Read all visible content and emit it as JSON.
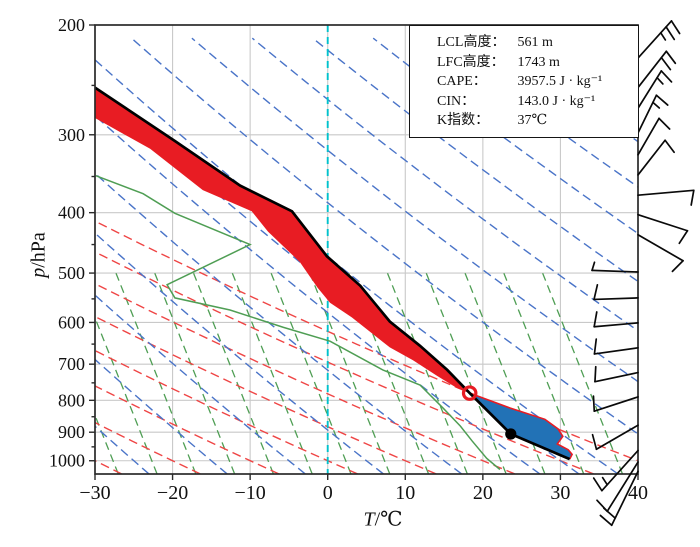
{
  "colors": {
    "cape_fill": "#e81c23",
    "cin_fill": "#2272b6",
    "temperature_line": "#000000",
    "dewpoint_line": "#4f9e54",
    "parcel_line": "#e81c23",
    "dry_adiabat": "#ef4545",
    "moist_adiabat": "#4a74c8",
    "isohume": "#4f9e54",
    "zero_isotherm": "#00c2cc",
    "grid": "#c9c9c9",
    "axis": "#2a2a2a",
    "barb": "#0a0a0a"
  },
  "stats_box": {
    "rows": [
      {
        "label": "LCL高度：",
        "value": "561 m"
      },
      {
        "label": "LFC高度：",
        "value": "1743 m"
      },
      {
        "label": "CAPE：",
        "value": "3957.5 J · kg⁻¹"
      },
      {
        "label": "CIN：",
        "value": "143.0 J · kg⁻¹"
      },
      {
        "label": "K指数：",
        "value": "37℃"
      }
    ]
  },
  "axes": {
    "x": {
      "symbol": "T",
      "unit": "/℃",
      "min": -30,
      "max": 40,
      "ticks": [
        -30,
        -20,
        -10,
        0,
        10,
        20,
        30,
        40
      ]
    },
    "y": {
      "symbol": "p",
      "unit": "/hPa",
      "min": 200,
      "max": 1050,
      "scale": "log",
      "ticks": [
        200,
        300,
        400,
        500,
        600,
        700,
        800,
        900,
        1000
      ],
      "minor_ticks": [
        250,
        350,
        450,
        550,
        650,
        750,
        850,
        950
      ]
    }
  },
  "chart_data": {
    "type": "line",
    "title": "",
    "xlabel": "T/℃",
    "ylabel": "p/hPa",
    "xlim": [
      -30,
      40
    ],
    "ylim_hPa": [
      1050,
      200
    ],
    "grid": true,
    "series": [
      {
        "name": "environment_temperature",
        "units": [
          "degC",
          "hPa"
        ],
        "points": [
          [
            -30,
            252
          ],
          [
            -19.7,
            307
          ],
          [
            -11.3,
            362
          ],
          [
            -4.6,
            398
          ],
          [
            -0.1,
            470
          ],
          [
            4.2,
            524
          ],
          [
            8.0,
            598
          ],
          [
            11.9,
            654
          ],
          [
            15.4,
            715
          ],
          [
            18.3,
            779
          ],
          [
            23.6,
            906
          ],
          [
            31.2,
            994
          ]
        ]
      },
      {
        "name": "dewpoint",
        "units": [
          "degC",
          "hPa"
        ],
        "points": [
          [
            -29.9,
            349
          ],
          [
            -23.8,
            373
          ],
          [
            -19.7,
            401
          ],
          [
            -10.0,
            450
          ],
          [
            -20.7,
            522
          ],
          [
            -19.7,
            548
          ],
          [
            -12.6,
            573
          ],
          [
            -5.7,
            611
          ],
          [
            0.3,
            643
          ],
          [
            7.1,
            715
          ],
          [
            11.9,
            756
          ],
          [
            14.9,
            824
          ],
          [
            17.1,
            880
          ],
          [
            18.6,
            929
          ],
          [
            20.5,
            991
          ],
          [
            22.2,
            1033
          ]
        ]
      },
      {
        "name": "parcel_path_low_level",
        "units": [
          "degC",
          "hPa"
        ],
        "points": [
          [
            18.3,
            779
          ],
          [
            23.5,
            823
          ],
          [
            28.0,
            858
          ],
          [
            29.7,
            889
          ],
          [
            30.3,
            914
          ],
          [
            29.6,
            940
          ],
          [
            31.0,
            960
          ],
          [
            31.5,
            977
          ],
          [
            31.2,
            994
          ]
        ]
      },
      {
        "name": "cape_inner_boundary",
        "units": [
          "degC",
          "hPa"
        ],
        "points": [
          [
            -30,
            282
          ],
          [
            -22.9,
            316
          ],
          [
            -16.1,
            368
          ],
          [
            -9.8,
            398
          ],
          [
            -7.7,
            429
          ],
          [
            -3.6,
            480
          ],
          [
            -1.3,
            528
          ],
          [
            0.3,
            558
          ],
          [
            3.1,
            589
          ],
          [
            5.1,
            616
          ],
          [
            8.0,
            658
          ],
          [
            11.0,
            690
          ],
          [
            14.1,
            731
          ],
          [
            16.7,
            765
          ],
          [
            18.3,
            779
          ]
        ]
      }
    ],
    "areas": [
      {
        "name": "CAPE",
        "value_J_per_kg": 3957.5,
        "fill": "#e81c23"
      },
      {
        "name": "CIN",
        "value_J_per_kg": 143.0,
        "fill": "#2272b6"
      }
    ],
    "markers": [
      {
        "name": "LFC",
        "t": 18.3,
        "p": 779,
        "style": "open-red-circle"
      },
      {
        "name": "LCL",
        "t": 23.6,
        "p": 906,
        "style": "filled-black-dot"
      }
    ],
    "background_lines": {
      "zero_isotherm_degC": 0,
      "dry_adiabats_theta_degC": [
        -30,
        -20,
        -10,
        0,
        10,
        20,
        30,
        40
      ],
      "dry_adiabat_exponent": 0.286,
      "moist_adiabats_thetaw_degC": [
        -25,
        -15,
        -5,
        5,
        15,
        25,
        30,
        35,
        45,
        55,
        65,
        75,
        85,
        95,
        105,
        115,
        125
      ],
      "moist_adiabat_exponent": 0.16,
      "isohume_bottom_degC": [
        -27,
        -22,
        -17,
        -12,
        -7,
        -2,
        3,
        8,
        13,
        18,
        23,
        28,
        33,
        38
      ],
      "isohume_top_p": 500,
      "isohume_top_offset_degC": -10.3
    },
    "wind_barbs": [
      {
        "p": 226,
        "dir": 42,
        "full": 2,
        "half": 1,
        "len": 50
      },
      {
        "p": 252,
        "dir": 38,
        "full": 2,
        "half": 0,
        "len": 46
      },
      {
        "p": 272,
        "dir": 32,
        "full": 1,
        "half": 1,
        "len": 44
      },
      {
        "p": 298,
        "dir": 26,
        "full": 1,
        "half": 1,
        "len": 42
      },
      {
        "p": 323,
        "dir": 30,
        "full": 1,
        "half": 0,
        "len": 42
      },
      {
        "p": 348,
        "dir": 38,
        "full": 1,
        "half": 0,
        "len": 44
      },
      {
        "p": 375,
        "dir": 85,
        "full": 1,
        "half": 0,
        "len": 56
      },
      {
        "p": 403,
        "dir": 108,
        "full": 1,
        "half": 0,
        "len": 52
      },
      {
        "p": 434,
        "dir": 120,
        "full": 1,
        "half": 0,
        "len": 52
      },
      {
        "p": 498,
        "dir": 272,
        "full": 0,
        "half": 1,
        "len": 46
      },
      {
        "p": 548,
        "dir": 268,
        "full": 1,
        "half": 0,
        "len": 44
      },
      {
        "p": 601,
        "dir": 265,
        "full": 1,
        "half": 0,
        "len": 44
      },
      {
        "p": 659,
        "dir": 262,
        "full": 1,
        "half": 0,
        "len": 44
      },
      {
        "p": 722,
        "dir": 258,
        "full": 1,
        "half": 0,
        "len": 44
      },
      {
        "p": 790,
        "dir": 252,
        "full": 1,
        "half": 0,
        "len": 46
      },
      {
        "p": 877,
        "dir": 240,
        "full": 1,
        "half": 0,
        "len": 48
      },
      {
        "p": 963,
        "dir": 222,
        "full": 1,
        "half": 1,
        "len": 54
      },
      {
        "p": 1005,
        "dir": 212,
        "full": 1,
        "half": 0,
        "len": 58
      },
      {
        "p": 1040,
        "dir": 206,
        "full": 2,
        "half": 0,
        "len": 60
      }
    ]
  }
}
